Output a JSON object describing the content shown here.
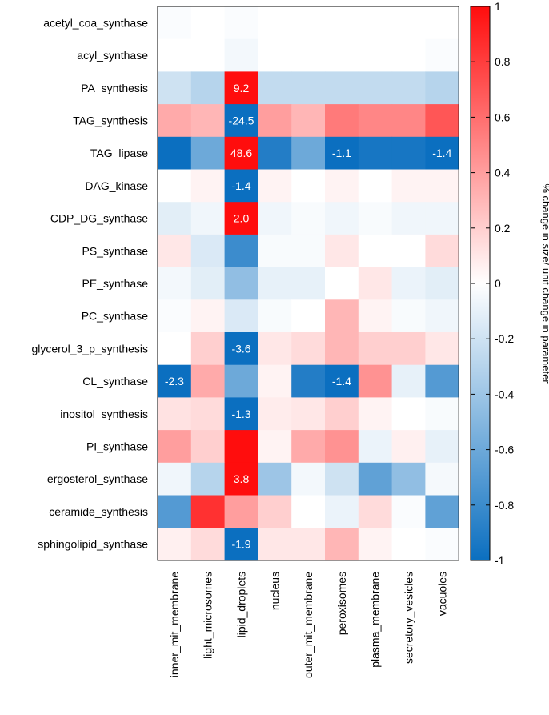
{
  "chart_data": {
    "type": "heatmap",
    "rows": [
      "acetyl_coa_synthase",
      "acyl_synthase",
      "PA_synthesis",
      "TAG_synthesis",
      "TAG_lipase",
      "DAG_kinase",
      "CDP_DG_synthase",
      "PS_synthase",
      "PE_synthase",
      "PC_synthase",
      "glycerol_3_p_synthesis",
      "CL_synthase",
      "inositol_synthesis",
      "PI_synthase",
      "ergosterol_synthase",
      "ceramide_synthesis",
      "sphingolipid_synthase"
    ],
    "columns": [
      "inner_mit_membrane",
      "light_microsomes",
      "lipid_droplets",
      "nucleus",
      "outer_mit_membrane",
      "peroxisomes",
      "plasma_membrane",
      "secretory_vesicles",
      "vacuoles"
    ],
    "values": [
      [
        -0.02,
        0.0,
        -0.02,
        0.0,
        0.0,
        0.0,
        0.0,
        0.0,
        0.0
      ],
      [
        0.0,
        0.0,
        -0.05,
        0.0,
        0.0,
        0.0,
        0.0,
        0.0,
        -0.02
      ],
      [
        -0.2,
        -0.3,
        1.0,
        -0.25,
        -0.25,
        -0.25,
        -0.25,
        -0.25,
        -0.3
      ],
      [
        0.35,
        0.3,
        -1.0,
        0.4,
        0.3,
        0.55,
        0.5,
        0.5,
        0.7
      ],
      [
        -1.0,
        -0.6,
        1.0,
        -0.9,
        -0.6,
        -1.0,
        -0.95,
        -0.95,
        -1.0
      ],
      [
        0.0,
        0.05,
        -1.0,
        0.05,
        0.0,
        0.05,
        0.0,
        0.05,
        0.05
      ],
      [
        -0.12,
        -0.06,
        1.0,
        -0.06,
        -0.03,
        -0.06,
        -0.03,
        -0.06,
        -0.06
      ],
      [
        0.1,
        -0.15,
        -0.8,
        -0.03,
        -0.03,
        0.1,
        0.0,
        0.0,
        0.15
      ],
      [
        -0.05,
        -0.12,
        -0.45,
        -0.1,
        -0.1,
        0.0,
        0.1,
        -0.08,
        -0.12
      ],
      [
        -0.02,
        0.05,
        -0.15,
        -0.03,
        0.0,
        0.3,
        0.05,
        -0.03,
        -0.06
      ],
      [
        0.0,
        0.2,
        -1.0,
        0.1,
        0.15,
        0.3,
        0.2,
        0.2,
        0.1
      ],
      [
        -1.0,
        0.35,
        -0.6,
        0.05,
        -0.9,
        -1.0,
        0.45,
        -0.1,
        -0.7
      ],
      [
        0.12,
        0.15,
        -1.0,
        0.08,
        0.1,
        0.2,
        0.05,
        0.0,
        -0.03
      ],
      [
        0.4,
        0.2,
        1.0,
        0.05,
        0.35,
        0.45,
        -0.08,
        0.06,
        -0.1
      ],
      [
        -0.06,
        -0.3,
        1.0,
        -0.4,
        -0.05,
        -0.2,
        -0.65,
        -0.45,
        -0.04
      ],
      [
        -0.7,
        0.85,
        0.4,
        0.2,
        0.0,
        -0.08,
        0.15,
        -0.02,
        -0.65
      ],
      [
        0.06,
        0.15,
        -1.0,
        0.1,
        0.1,
        0.3,
        0.05,
        0.0,
        -0.02
      ]
    ],
    "annotations": [
      {
        "row": 2,
        "col": 2,
        "text": "9.2"
      },
      {
        "row": 3,
        "col": 2,
        "text": "-24.5"
      },
      {
        "row": 4,
        "col": 2,
        "text": "48.6"
      },
      {
        "row": 4,
        "col": 5,
        "text": "-1.1"
      },
      {
        "row": 4,
        "col": 8,
        "text": "-1.4"
      },
      {
        "row": 5,
        "col": 2,
        "text": "-1.4"
      },
      {
        "row": 6,
        "col": 2,
        "text": "2.0"
      },
      {
        "row": 10,
        "col": 2,
        "text": "-3.6"
      },
      {
        "row": 11,
        "col": 0,
        "text": "-2.3"
      },
      {
        "row": 11,
        "col": 5,
        "text": "-1.4"
      },
      {
        "row": 12,
        "col": 2,
        "text": "-1.3"
      },
      {
        "row": 14,
        "col": 2,
        "text": "3.8"
      },
      {
        "row": 16,
        "col": 2,
        "text": "-1.9"
      }
    ],
    "colorbar": {
      "min": -1,
      "max": 1,
      "ticks": [
        "1",
        "0.8",
        "0.6",
        "0.4",
        "0.2",
        "0",
        "-0.2",
        "-0.4",
        "-0.6",
        "-0.8",
        "-1"
      ],
      "label": "% change in size/ unit change in parameter",
      "colors": {
        "negative": "#0b6fc0",
        "zero": "#ffffff",
        "positive": "#ff0d0d"
      }
    }
  }
}
